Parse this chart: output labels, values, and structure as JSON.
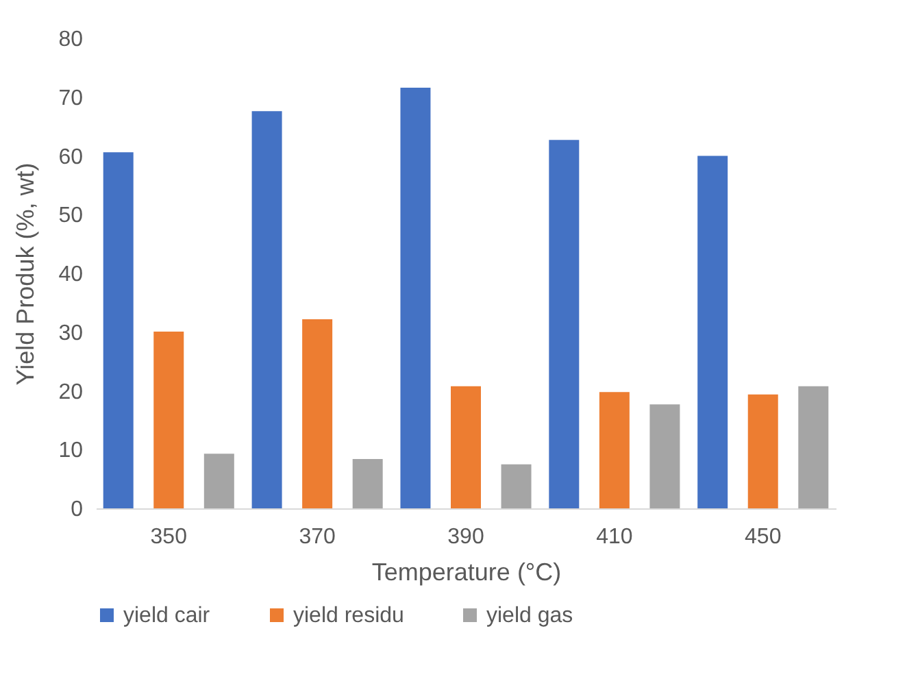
{
  "chart_data": {
    "type": "bar",
    "xlabel": "Temperature (°C)",
    "ylabel": "Yield Produk (%, wt)",
    "categories": [
      "350",
      "370",
      "390",
      "410",
      "450"
    ],
    "series": [
      {
        "name": "yield cair",
        "color": "#4472c4",
        "values": [
          60.6,
          67.6,
          71.6,
          62.7,
          60
        ]
      },
      {
        "name": "yield residu",
        "color": "#ed7d31",
        "values": [
          30.1,
          32.2,
          20.8,
          19.8,
          19.4
        ]
      },
      {
        "name": "yield gas",
        "color": "#a5a5a5",
        "values": [
          9.3,
          8.4,
          7.5,
          17.7,
          20.8
        ]
      }
    ],
    "ylim": [
      0,
      80
    ],
    "yticks": [
      0,
      10,
      20,
      30,
      40,
      50,
      60,
      70,
      80
    ],
    "grid": false,
    "legend": "bottom"
  }
}
